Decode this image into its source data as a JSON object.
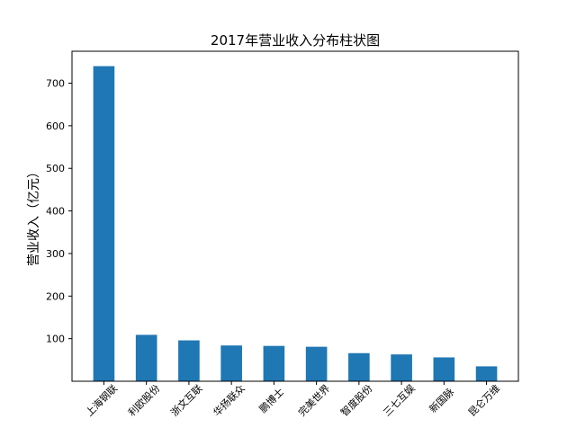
{
  "chart_data": {
    "type": "bar",
    "title": "2017年营业收入分布柱状图",
    "xlabel": "",
    "ylabel": "营业收入（亿元）",
    "categories": [
      "上海钢联",
      "利欧股份",
      "浙文互联",
      "华扬联众",
      "鹏博士",
      "完美世界",
      "智度股份",
      "三七互娱",
      "新国脉",
      "昆仑万维"
    ],
    "values": [
      740,
      109,
      96,
      84,
      83,
      81,
      66,
      63,
      56,
      35
    ],
    "ylim": [
      0,
      775
    ],
    "yticks": [
      100,
      200,
      300,
      400,
      500,
      600,
      700
    ],
    "bar_color": "#1f77b4",
    "grid": false,
    "legend": "none"
  }
}
